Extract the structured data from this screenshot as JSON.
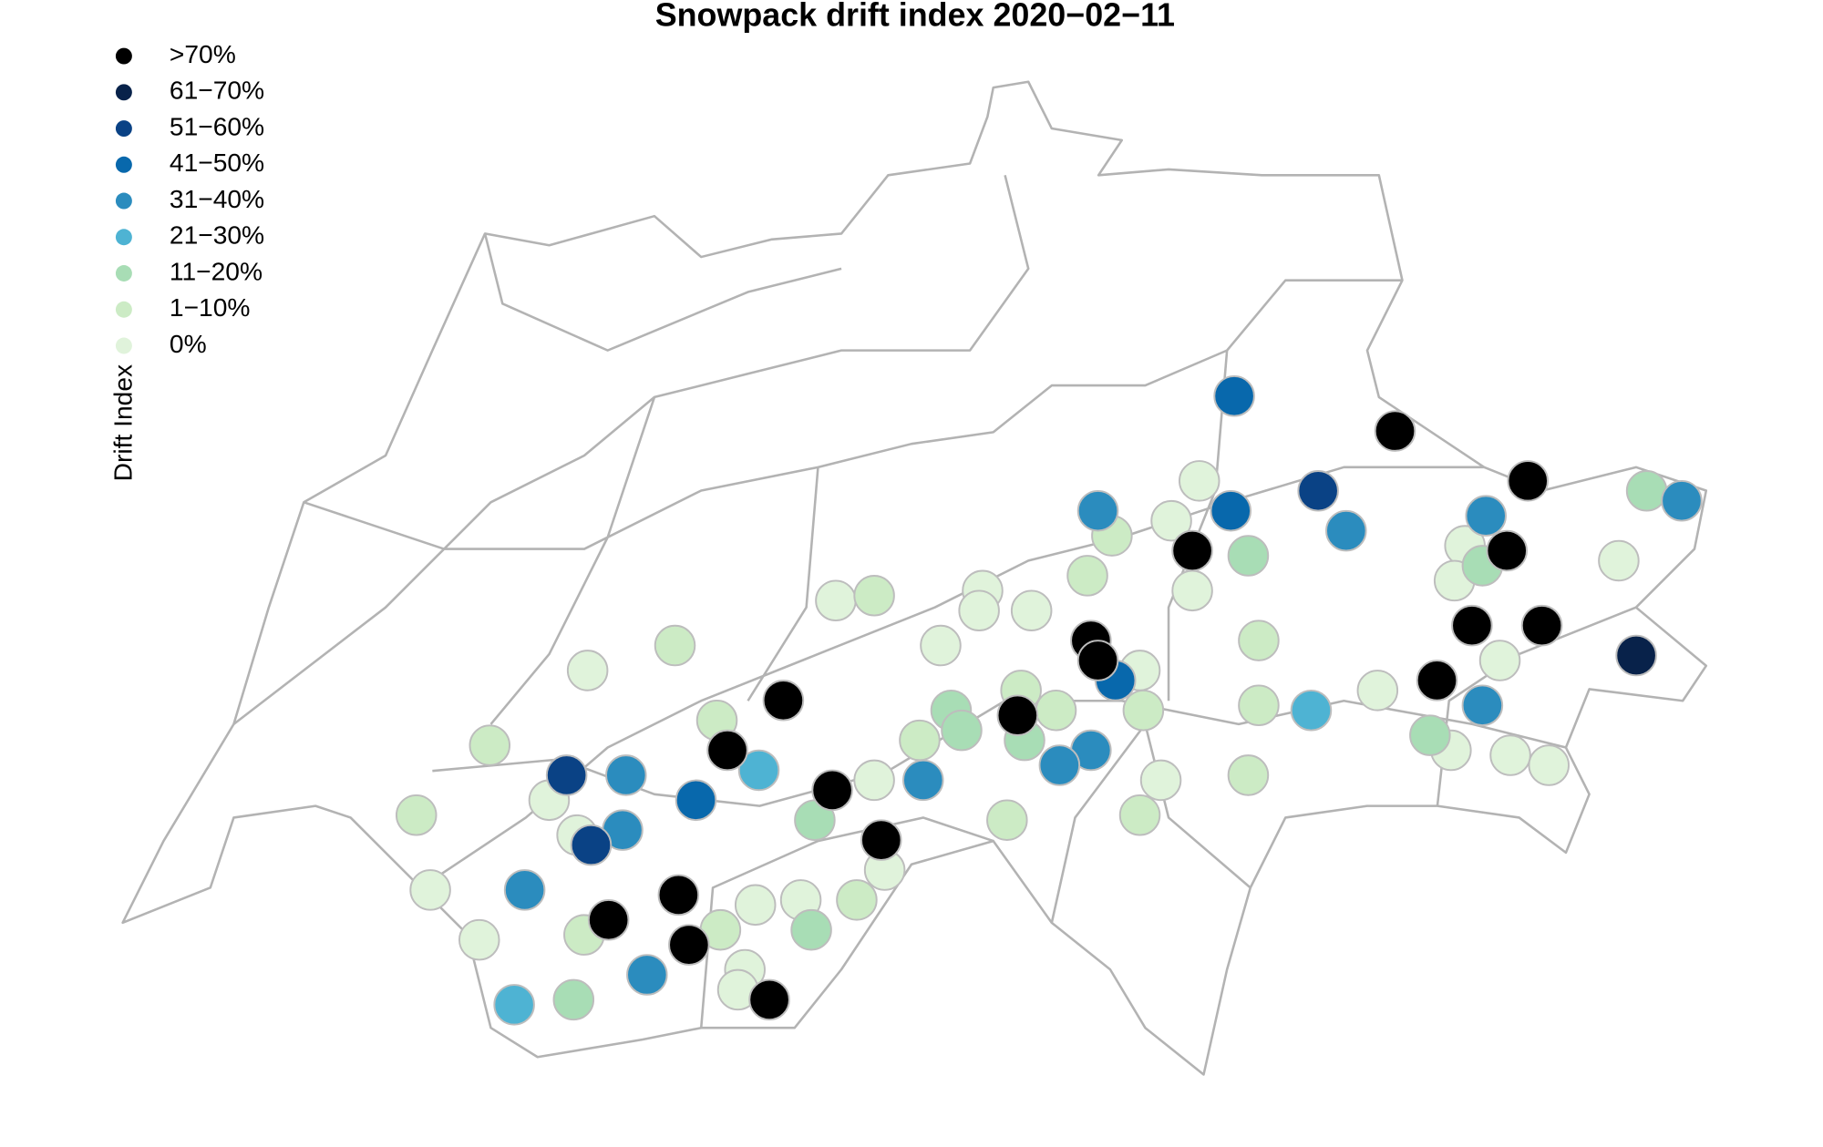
{
  "chart_data": {
    "type": "scatter",
    "title": "Snowpack drift index 2020−02−11",
    "legend_title": "Drift Index",
    "xlim": [
      5.96,
      10.49
    ],
    "ylim": [
      45.82,
      47.81
    ],
    "series": [
      {
        "name": ">70%",
        "color": "#000000",
        "x": [
          9.6,
          9.98,
          9.02,
          9.92,
          9.82,
          10.02,
          8.73,
          8.75,
          9.72,
          7.85,
          7.69,
          8.52,
          7.99,
          8.13,
          7.55,
          7.35,
          7.58,
          7.81
        ],
        "y": [
          47.11,
          47.01,
          46.87,
          46.87,
          46.72,
          46.72,
          46.69,
          46.65,
          46.61,
          46.57,
          46.47,
          46.54,
          46.39,
          46.29,
          46.18,
          46.13,
          46.08,
          45.97
        ]
      },
      {
        "name": "61−70%",
        "color": "#08224a",
        "x": [
          10.29
        ],
        "y": [
          46.66
        ]
      },
      {
        "name": "51−60%",
        "color": "#0a4285",
        "x": [
          9.38,
          7.23,
          7.3
        ],
        "y": [
          46.99,
          46.42,
          46.28
        ]
      },
      {
        "name": "41−50%",
        "color": "#0868ac",
        "x": [
          9.14,
          9.13,
          8.8,
          7.6
        ],
        "y": [
          47.18,
          46.95,
          46.61,
          46.37
        ]
      },
      {
        "name": "31−40%",
        "color": "#2b8cbe",
        "x": [
          10.42,
          9.46,
          8.75,
          9.86,
          9.85,
          8.73,
          8.64,
          7.4,
          8.25,
          7.39,
          7.11,
          7.46
        ],
        "y": [
          46.97,
          46.91,
          46.95,
          46.94,
          46.56,
          46.47,
          46.44,
          46.42,
          46.41,
          46.31,
          46.19,
          46.02
        ]
      },
      {
        "name": "21−30%",
        "color": "#4eb3d3",
        "x": [
          7.78,
          9.36,
          7.08
        ],
        "y": [
          46.43,
          46.55,
          45.96
        ]
      },
      {
        "name": "11−20%",
        "color": "#a8ddb5",
        "x": [
          10.32,
          9.18,
          9.85,
          8.33,
          8.36,
          8.54,
          9.7,
          7.94,
          7.93,
          7.25
        ],
        "y": [
          46.99,
          46.86,
          46.84,
          46.55,
          46.51,
          46.49,
          46.5,
          46.33,
          46.11,
          45.97
        ]
      },
      {
        "name": "1−10%",
        "color": "#ccebc5",
        "x": [
          8.79,
          8.72,
          9.21,
          8.11,
          7.54,
          7.66,
          8.53,
          8.63,
          8.24,
          8.88,
          9.21,
          9.18,
          7.01,
          6.8,
          8.49,
          8.87,
          8.06,
          7.28,
          7.67
        ],
        "y": [
          46.9,
          46.82,
          46.69,
          46.78,
          46.68,
          46.53,
          46.59,
          46.55,
          46.49,
          46.55,
          46.56,
          46.42,
          46.48,
          46.34,
          46.33,
          46.34,
          46.17,
          46.1,
          46.11
        ]
      },
      {
        "name": "0%",
        "color": "#e0f3db",
        "x": [
          9.04,
          8.96,
          9.8,
          9.77,
          10.24,
          9.02,
          8.0,
          8.42,
          8.41,
          8.56,
          8.3,
          8.87,
          9.9,
          7.29,
          9.55,
          9.76,
          9.93,
          10.04,
          8.93,
          8.11,
          7.18,
          7.26,
          6.84,
          7.77,
          7.9,
          8.14,
          6.98,
          7.74,
          7.72
        ],
        "y": [
          47.01,
          46.93,
          46.88,
          46.81,
          46.85,
          46.79,
          46.77,
          46.79,
          46.75,
          46.75,
          46.68,
          46.63,
          46.65,
          46.63,
          46.59,
          46.47,
          46.46,
          46.44,
          46.41,
          46.41,
          46.37,
          46.3,
          46.19,
          46.16,
          46.17,
          46.23,
          46.09,
          46.03,
          45.99
        ]
      }
    ]
  }
}
